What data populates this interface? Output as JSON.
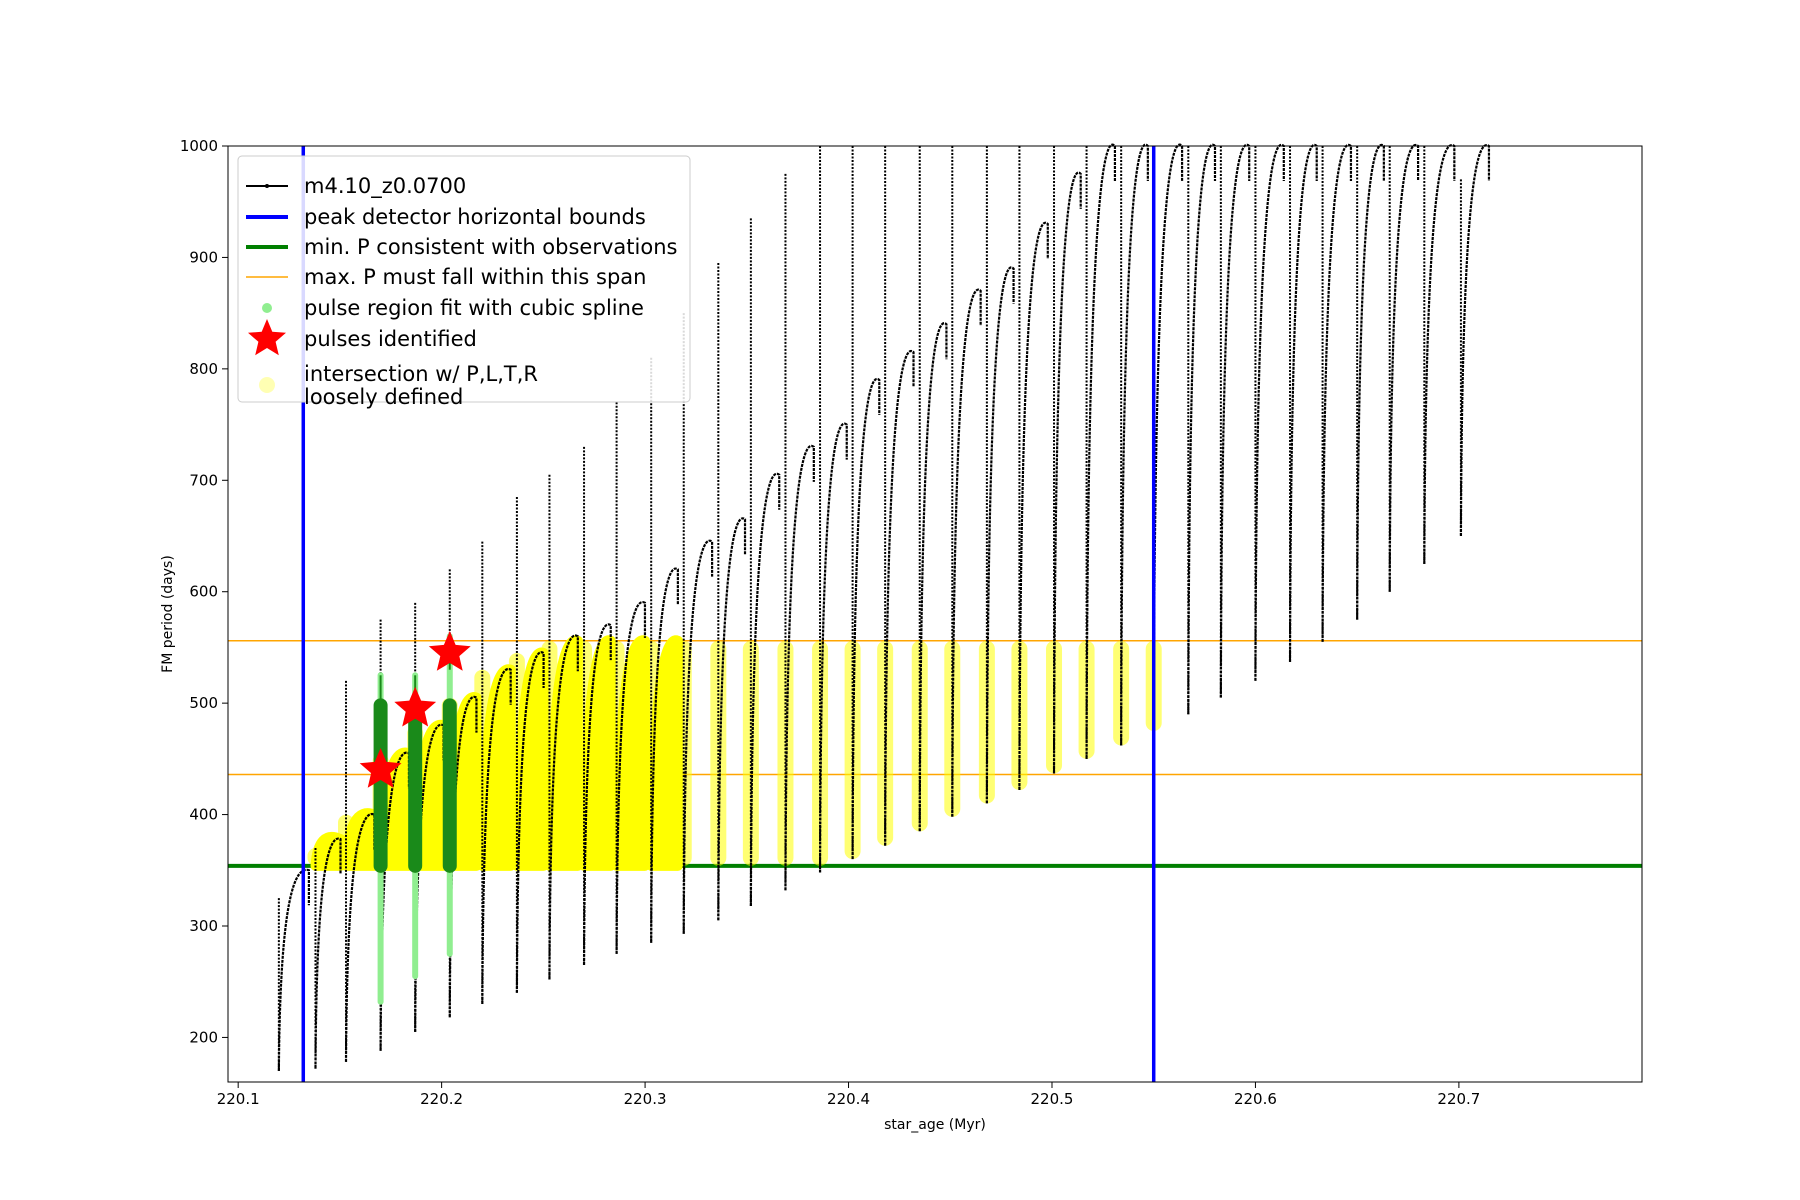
{
  "chart_data": {
    "type": "scatter",
    "xlabel": "star_age (Myr)",
    "ylabel": "FM period (days)",
    "xlim": [
      220.095,
      220.79
    ],
    "ylim": [
      160,
      1000
    ],
    "x_ticks": [
      "220.1",
      "220.2",
      "220.3",
      "220.4",
      "220.5",
      "220.6",
      "220.7"
    ],
    "y_ticks": [
      "200",
      "300",
      "400",
      "500",
      "600",
      "700",
      "800",
      "900",
      "1000"
    ],
    "legend_position": "upper-left",
    "grid": false,
    "series": [
      {
        "name": "m4.10_z0.0700",
        "kind": "line-with-points",
        "color": "#000000",
        "pulse_ages": [
          220.12,
          220.138,
          220.153,
          220.17,
          220.187,
          220.204,
          220.22,
          220.237,
          220.253,
          220.27,
          220.286,
          220.303,
          220.319,
          220.336,
          220.352,
          220.369,
          220.386,
          220.402,
          220.418,
          220.435,
          220.451,
          220.468,
          220.484,
          220.501,
          220.517,
          220.534,
          220.55,
          220.567,
          220.583,
          220.6,
          220.617,
          220.633,
          220.65,
          220.666,
          220.683,
          220.701
        ],
        "pulse_min_periods": [
          170,
          172,
          178,
          188,
          205,
          218,
          230,
          240,
          252,
          265,
          275,
          285,
          293,
          305,
          318,
          332,
          348,
          360,
          372,
          385,
          398,
          410,
          422,
          437,
          450,
          462,
          475,
          490,
          505,
          520,
          537,
          555,
          575,
          600,
          625,
          650
        ],
        "pulse_peak_periods": [
          350,
          378,
          400,
          455,
          480,
          505,
          530,
          545,
          560,
          570,
          590,
          620,
          645,
          665,
          705,
          730,
          750,
          790,
          815,
          840,
          870,
          890,
          930,
          975,
          1000,
          1000,
          1000,
          1000,
          1000,
          1000,
          1000,
          1000,
          1000,
          1000,
          1000,
          1000
        ],
        "spike_tops": [
          325,
          370,
          520,
          575,
          590,
          620,
          645,
          685,
          705,
          730,
          770,
          810,
          850,
          895,
          935,
          975,
          1000,
          1000,
          1000,
          1000,
          1000,
          1000,
          1000,
          1000,
          1000,
          1000,
          1000,
          1000,
          1000,
          1000,
          1000,
          1000,
          1000,
          1000,
          1000,
          970
        ]
      },
      {
        "name": "peak detector horizontal bounds",
        "kind": "vline",
        "color": "#0000ff",
        "x": [
          220.132,
          220.55
        ]
      },
      {
        "name": "min. P consistent with observations",
        "kind": "hline",
        "color": "#007f00",
        "y": 354
      },
      {
        "name": "max. P must fall within this span",
        "kind": "hline",
        "color": "#ffa500",
        "y": [
          436,
          556
        ]
      },
      {
        "name": "pulse region fit with cubic spline",
        "kind": "scatter",
        "color": "#90ee90",
        "segments": [
          {
            "x": 220.17,
            "y": [
              232,
              525
            ]
          },
          {
            "x": 220.187,
            "y": [
              255,
              525
            ]
          },
          {
            "x": 220.204,
            "y": [
              275,
              560
            ]
          }
        ]
      },
      {
        "name": "pulses identified",
        "kind": "marker-star",
        "color": "#ff0000",
        "points": [
          {
            "x": 220.17,
            "y": 440
          },
          {
            "x": 220.187,
            "y": 495
          },
          {
            "x": 220.204,
            "y": 545
          }
        ]
      },
      {
        "name": "intersection w/ P,L,T,R\nloosely defined",
        "kind": "scatter",
        "color": "#ffff80"
      }
    ]
  }
}
